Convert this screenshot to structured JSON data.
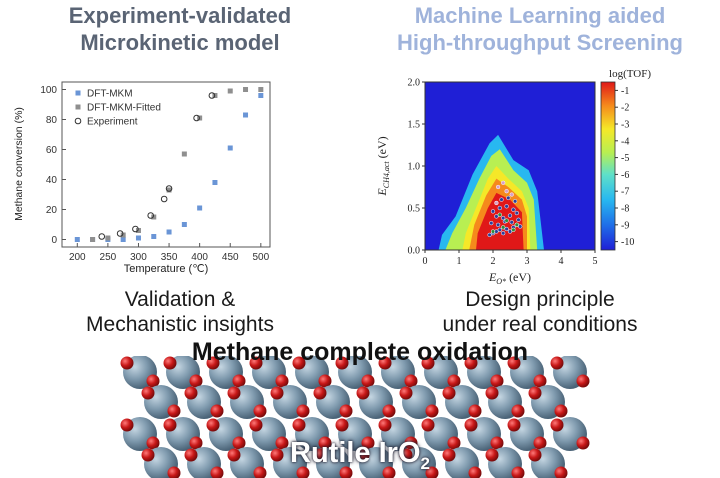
{
  "headings": {
    "left": [
      "Experiment-validated",
      "Microkinetic model"
    ],
    "right": [
      "Machine Learning aided",
      "High-throughput Screening"
    ]
  },
  "captions": {
    "left": [
      "Validation &",
      "Mechanistic insights"
    ],
    "right": [
      "Design principle",
      "under real conditions"
    ]
  },
  "title": "Methane complete oxidation",
  "surface_label": {
    "main": "Rutile IrO",
    "subscript": "2"
  },
  "colors": {
    "heading_left": "#5a6474",
    "heading_right": "#9fb3db",
    "dft": "#6a95d6",
    "fitted": "#8f8f8f"
  },
  "chart_data": [
    {
      "type": "scatter",
      "xlabel": "Temperature (℃)",
      "ylabel": "Methane conversion (%)",
      "xlim": [
        175,
        515
      ],
      "ylim": [
        -5,
        105
      ],
      "xticks": [
        "200",
        "250",
        "300",
        "350",
        "400",
        "450",
        "500"
      ],
      "yticks": [
        "0",
        "20",
        "40",
        "60",
        "80",
        "100"
      ],
      "legend_position": "top-left",
      "series": [
        {
          "name": "DFT-MKM",
          "marker": "square",
          "color": "#6a95d6",
          "x": [
            200,
            225,
            250,
            275,
            300,
            325,
            350,
            375,
            400,
            425,
            450,
            475,
            500
          ],
          "y": [
            0,
            0,
            0,
            0,
            1,
            2,
            5,
            10,
            21,
            38,
            61,
            83,
            96
          ]
        },
        {
          "name": "DFT-MKM-Fitted",
          "marker": "square",
          "color": "#8f8f8f",
          "x": [
            225,
            250,
            275,
            300,
            325,
            350,
            375,
            400,
            425,
            450,
            475,
            500
          ],
          "y": [
            0,
            1,
            3,
            6,
            15,
            33,
            57,
            81,
            96,
            99,
            100,
            100
          ]
        },
        {
          "name": "Experiment",
          "marker": "circle-open",
          "color": "#333333",
          "x": [
            240,
            270,
            295,
            320,
            342,
            350,
            395,
            420
          ],
          "y": [
            2,
            4,
            7,
            16,
            27,
            34,
            81,
            96
          ]
        }
      ]
    },
    {
      "type": "heatmap",
      "xlabel": "E",
      "xlabel_sub": "O*",
      "xlabel_unit": " (eV)",
      "ylabel": "E",
      "ylabel_sub": "CH4,act",
      "ylabel_unit": " (eV)",
      "xlim": [
        0,
        5
      ],
      "ylim": [
        0,
        2
      ],
      "xticks": [
        "0",
        "1",
        "2",
        "3",
        "4",
        "5"
      ],
      "yticks": [
        "0.0",
        "0.5",
        "1.0",
        "1.5",
        "2.0"
      ],
      "colorbar_label": "log(TOF)",
      "colorbar_ticks": [
        "-1",
        "-2",
        "-3",
        "-4",
        "-5",
        "-6",
        "-7",
        "-8",
        "-9",
        "-10"
      ],
      "colorbar_range": [
        -10.5,
        -0.5
      ],
      "region_boundaries": [
        {
          "level": -9,
          "points": [
            [
              0.4,
              0
            ],
            [
              0.5,
              0.18
            ],
            [
              0.9,
              0.4
            ],
            [
              1.4,
              0.9
            ],
            [
              1.9,
              1.27
            ],
            [
              2.15,
              1.37
            ],
            [
              2.6,
              1.07
            ],
            [
              3.05,
              0.95
            ],
            [
              3.3,
              0.7
            ],
            [
              3.5,
              0
            ]
          ]
        },
        {
          "level": -6,
          "points": [
            [
              0.6,
              0
            ],
            [
              0.8,
              0.2
            ],
            [
              1.2,
              0.5
            ],
            [
              1.6,
              0.85
            ],
            [
              1.95,
              1.12
            ],
            [
              2.2,
              1.2
            ],
            [
              2.6,
              0.95
            ],
            [
              3.0,
              0.8
            ],
            [
              3.2,
              0.6
            ],
            [
              3.3,
              0
            ]
          ]
        },
        {
          "level": -3,
          "points": [
            [
              1.1,
              0
            ],
            [
              1.2,
              0.2
            ],
            [
              1.5,
              0.5
            ],
            [
              1.85,
              0.85
            ],
            [
              2.1,
              1.0
            ],
            [
              2.45,
              0.85
            ],
            [
              2.85,
              0.7
            ],
            [
              3.05,
              0.5
            ],
            [
              3.1,
              0
            ]
          ]
        },
        {
          "level": -2,
          "points": [
            [
              1.3,
              0
            ],
            [
              1.45,
              0.3
            ],
            [
              1.8,
              0.65
            ],
            [
              2.1,
              0.85
            ],
            [
              2.45,
              0.75
            ],
            [
              2.85,
              0.6
            ],
            [
              3.0,
              0.4
            ],
            [
              3.0,
              0
            ]
          ]
        },
        {
          "level": -1,
          "points": [
            [
              1.5,
              0
            ],
            [
              1.55,
              0.2
            ],
            [
              1.85,
              0.5
            ],
            [
              2.1,
              0.68
            ],
            [
              2.5,
              0.6
            ],
            [
              2.85,
              0.45
            ],
            [
              2.9,
              0
            ]
          ]
        }
      ],
      "points": [
        {
          "x": [
            1.9,
            2.0,
            2.1,
            2.2,
            2.3,
            2.4,
            2.5,
            2.6,
            2.7,
            2.8,
            1.95,
            2.15,
            2.35,
            2.55,
            2.75,
            2.1,
            2.3,
            2.5,
            2.7,
            2.0,
            2.2,
            2.4,
            2.6,
            2.25,
            2.45,
            2.65
          ],
          "y": [
            0.18,
            0.2,
            0.22,
            0.24,
            0.2,
            0.25,
            0.22,
            0.27,
            0.3,
            0.28,
            0.32,
            0.3,
            0.34,
            0.33,
            0.36,
            0.4,
            0.38,
            0.41,
            0.44,
            0.46,
            0.5,
            0.52,
            0.48,
            0.6,
            0.62,
            0.58
          ],
          "color": "#2b3f9b"
        },
        {
          "x": [
            2.0,
            2.3,
            2.6,
            2.4,
            2.7,
            2.2
          ],
          "y": [
            0.22,
            0.27,
            0.24,
            0.35,
            0.3,
            0.42
          ],
          "color": "#2f8b3c"
        },
        {
          "x": [
            2.1,
            2.4,
            2.55,
            2.3,
            2.15
          ],
          "y": [
            0.56,
            0.7,
            0.66,
            0.8,
            0.75
          ],
          "color": "#d7a0c8"
        }
      ]
    }
  ]
}
